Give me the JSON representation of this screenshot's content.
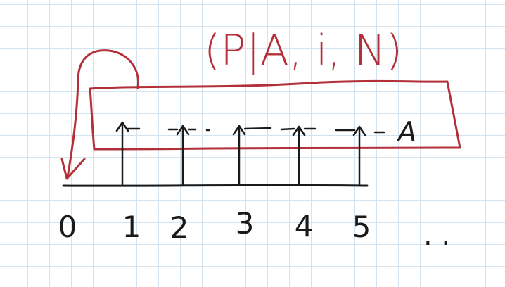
{
  "title": "(P|A, i, N)",
  "box_label": "A",
  "axis_labels": [
    "0",
    "1",
    "2",
    "3",
    "4",
    "5"
  ],
  "ellipsis": ". .",
  "colors": {
    "ink": "#1a1a1a",
    "annotation": "#b3303a",
    "grid": "#d4e3f0"
  }
}
